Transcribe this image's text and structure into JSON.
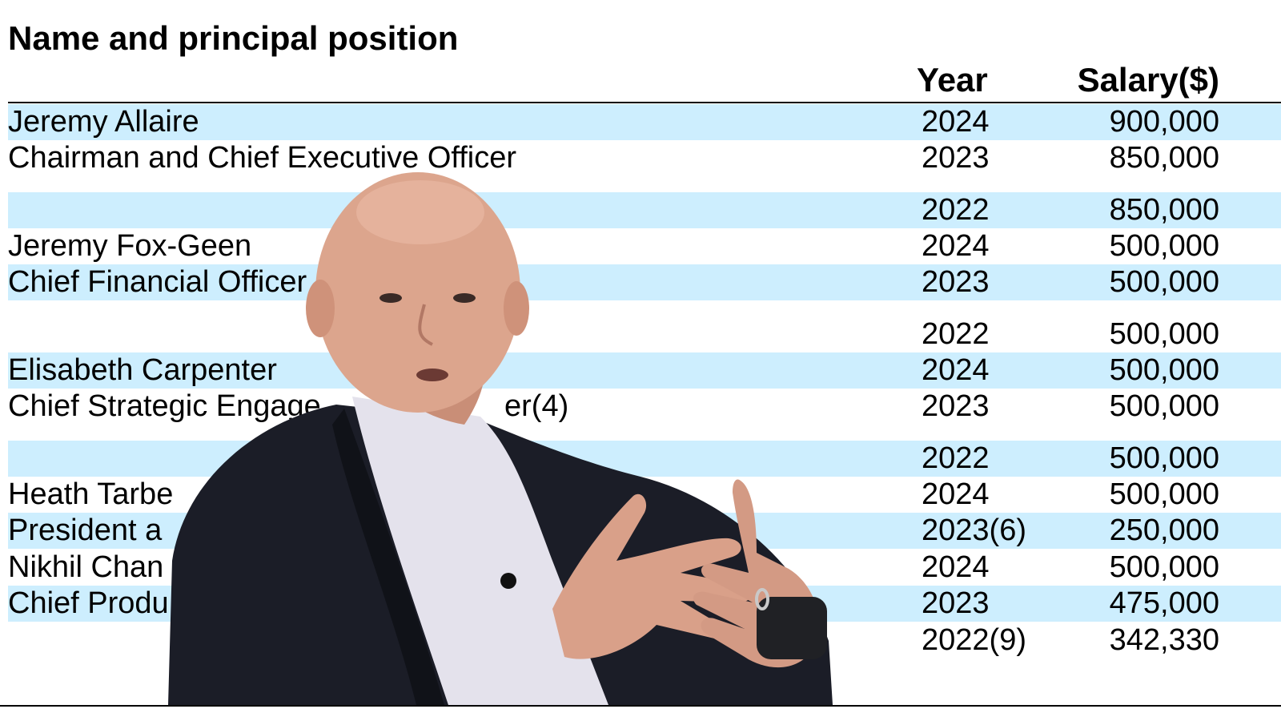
{
  "table": {
    "headers": {
      "name": "Name and principal position",
      "year": "Year",
      "salary": "Salary($)"
    },
    "rows": [
      {
        "name": "Jeremy Allaire",
        "year": "2024",
        "salary": "900,000"
      },
      {
        "name": "Chairman and Chief Executive Officer",
        "year": "2023",
        "salary": "850,000"
      },
      {
        "name": "",
        "year": "2022",
        "salary": "850,000"
      },
      {
        "name": "Jeremy Fox-Geen",
        "year": "2024",
        "salary": "500,000"
      },
      {
        "name": "Chief Financial Officer",
        "year": "2023",
        "salary": "500,000"
      },
      {
        "name": "",
        "year": "2022",
        "salary": "500,000"
      },
      {
        "name": "Elisabeth Carpenter",
        "year": "2024",
        "salary": "500,000"
      },
      {
        "name": "Chief Strategic Engage",
        "name_tail": "er(4)",
        "year": "2023",
        "salary": "500,000"
      },
      {
        "name": "",
        "year": "2022",
        "salary": "500,000"
      },
      {
        "name": "Heath Tarbe",
        "year": "2024",
        "salary": "500,000"
      },
      {
        "name": "President a",
        "year": "2023(6)",
        "salary": "250,000"
      },
      {
        "name": "Nikhil Chan",
        "year": "2024",
        "salary": "500,000"
      },
      {
        "name": "Chief Produ",
        "year": "2023",
        "salary": "475,000"
      },
      {
        "name": "",
        "year": "2022(9)",
        "salary": "342,330"
      }
    ]
  },
  "photo": {
    "subject": "man-in-dark-blazer-gesturing",
    "colors": {
      "shirt": "#e6e6ee",
      "blazer": "#1a1c26",
      "skin": "#dba58c",
      "shade_row": "#cdeefe"
    }
  }
}
